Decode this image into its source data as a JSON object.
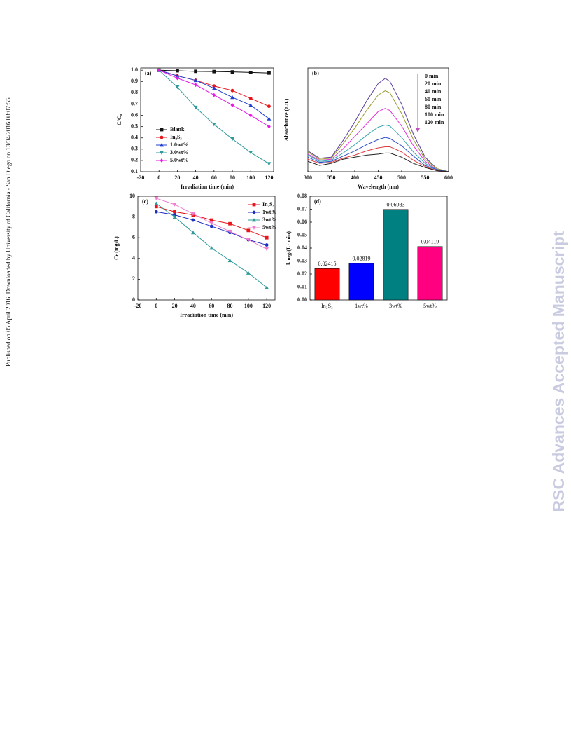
{
  "sidebar": "Published on 05 April 2016. Downloaded by University of California - San Diego on 13/04/2016 08:07:55.",
  "watermark": "RSC Advances Accepted Manuscript",
  "chart_data": [
    {
      "type": "line",
      "title": "(a)",
      "x_label": "Irradiation time (min)",
      "y_label": "C/C₀",
      "x": [
        0,
        20,
        40,
        60,
        80,
        100,
        120
      ],
      "xlim": [
        -20,
        125
      ],
      "xticks": [
        -20,
        0,
        20,
        40,
        60,
        80,
        100,
        120
      ],
      "ylim": [
        0.1,
        1.02
      ],
      "yticks": [
        0.1,
        0.2,
        0.3,
        0.4,
        0.5,
        0.6,
        0.7,
        0.8,
        0.9,
        {
          "value": 1,
          "label": "1.0"
        }
      ],
      "legend": "lower left",
      "series": [
        {
          "name": "Blank",
          "color": "#111111",
          "marker": "square",
          "values": [
            1.0,
            0.995,
            0.99,
            0.988,
            0.985,
            0.98,
            0.975
          ]
        },
        {
          "name": "In₂S₃",
          "color": "#e8161b",
          "marker": "circle",
          "values": [
            1.0,
            0.95,
            0.91,
            0.86,
            0.82,
            0.75,
            0.68
          ]
        },
        {
          "name": "1.0wt%",
          "color": "#1f3fd0",
          "marker": "triangle-up",
          "values": [
            1.0,
            0.95,
            0.91,
            0.84,
            0.76,
            0.69,
            0.57
          ]
        },
        {
          "name": "3.0wt%",
          "color": "#2e9a9a",
          "marker": "triangle-down",
          "values": [
            1.0,
            0.85,
            0.67,
            0.52,
            0.39,
            0.27,
            0.17
          ]
        },
        {
          "name": "5.0wt%",
          "color": "#e619e6",
          "marker": "diamond",
          "values": [
            1.0,
            0.93,
            0.87,
            0.78,
            0.69,
            0.6,
            0.5
          ]
        }
      ]
    },
    {
      "type": "line",
      "title": "(b)",
      "x_label": "Wavelength (nm)",
      "y_label": "Absorbance (a.u.)",
      "x": [
        300,
        325,
        350,
        375,
        400,
        425,
        450,
        465,
        475,
        500,
        525,
        550,
        575,
        600
      ],
      "xlim": [
        300,
        600
      ],
      "xticks": [
        300,
        350,
        400,
        450,
        500,
        550,
        600
      ],
      "ylim": [
        0,
        1
      ],
      "legend": "upper right",
      "series": [
        {
          "name": "0 min",
          "color": "#5a3c9e",
          "values": [
            0.2,
            0.13,
            0.14,
            0.3,
            0.48,
            0.68,
            0.85,
            0.9,
            0.87,
            0.65,
            0.36,
            0.14,
            0.03,
            0
          ]
        },
        {
          "name": "20 min",
          "color": "#9a9a30",
          "values": [
            0.19,
            0.12,
            0.13,
            0.27,
            0.42,
            0.59,
            0.74,
            0.78,
            0.76,
            0.56,
            0.31,
            0.12,
            0.03,
            0
          ]
        },
        {
          "name": "40 min",
          "color": "#e22fd8",
          "values": [
            0.17,
            0.11,
            0.12,
            0.22,
            0.34,
            0.46,
            0.58,
            0.61,
            0.59,
            0.44,
            0.25,
            0.1,
            0.02,
            0
          ]
        },
        {
          "name": "60 min",
          "color": "#3aa8b0",
          "values": [
            0.16,
            0.1,
            0.11,
            0.18,
            0.26,
            0.35,
            0.43,
            0.45,
            0.44,
            0.33,
            0.19,
            0.08,
            0.02,
            0
          ]
        },
        {
          "name": "80 min",
          "color": "#2f4fc8",
          "values": [
            0.14,
            0.09,
            0.1,
            0.15,
            0.2,
            0.26,
            0.31,
            0.33,
            0.32,
            0.25,
            0.15,
            0.06,
            0.02,
            0
          ]
        },
        {
          "name": "100 min",
          "color": "#e03a3a",
          "values": [
            0.12,
            0.08,
            0.09,
            0.13,
            0.16,
            0.2,
            0.23,
            0.24,
            0.24,
            0.19,
            0.11,
            0.05,
            0.01,
            0
          ]
        },
        {
          "name": "120 min",
          "color": "#222222",
          "values": [
            0.1,
            0.06,
            0.08,
            0.12,
            0.14,
            0.16,
            0.17,
            0.18,
            0.18,
            0.14,
            0.08,
            0.04,
            0.01,
            0
          ]
        }
      ]
    },
    {
      "type": "line",
      "title": "(c)",
      "x_label": "Irradiation time (min)",
      "y_label": "Cₜ (mg/L)",
      "x": [
        0,
        20,
        40,
        60,
        80,
        100,
        120
      ],
      "xlim": [
        -20,
        129
      ],
      "xticks": [
        -20,
        0,
        20,
        40,
        60,
        80,
        100,
        120
      ],
      "ylim": [
        0,
        10
      ],
      "yticks": [
        0,
        2,
        4,
        6,
        8,
        10
      ],
      "legend": "upper right",
      "series": [
        {
          "name": "In₂S₃",
          "color": "#e8161b",
          "marker": "square",
          "values": [
            9.0,
            8.5,
            8.2,
            7.7,
            7.35,
            6.7,
            6.0
          ]
        },
        {
          "name": "1wt%",
          "color": "#1f2fc0",
          "marker": "circle",
          "values": [
            8.5,
            8.2,
            7.7,
            7.1,
            6.5,
            5.8,
            5.3
          ]
        },
        {
          "name": "3wt%",
          "color": "#2e9a9a",
          "marker": "triangle-up",
          "values": [
            9.3,
            8.0,
            6.5,
            5.0,
            3.8,
            2.6,
            1.2
          ]
        },
        {
          "name": "5wt%",
          "color": "#f07cd0",
          "marker": "triangle-down",
          "values": [
            9.8,
            9.2,
            8.3,
            7.4,
            6.6,
            5.8,
            4.9
          ]
        }
      ]
    },
    {
      "type": "bar",
      "title": "(d)",
      "y_label": "k  mg/(L· min)",
      "categories": [
        "In₂S₃",
        "1wt%",
        "3wt%",
        "5wt%"
      ],
      "values": [
        0.02415,
        0.02819,
        0.06983,
        0.04119
      ],
      "colors": [
        "#ff0000",
        "#0000ff",
        "#008080",
        "#ff0080"
      ],
      "ylim": [
        0,
        0.08
      ],
      "yticks": [
        {
          "value": 0,
          "label": "0.00"
        },
        0.01,
        0.02,
        0.03,
        0.04,
        0.05,
        0.06,
        0.07,
        0.08
      ]
    }
  ]
}
